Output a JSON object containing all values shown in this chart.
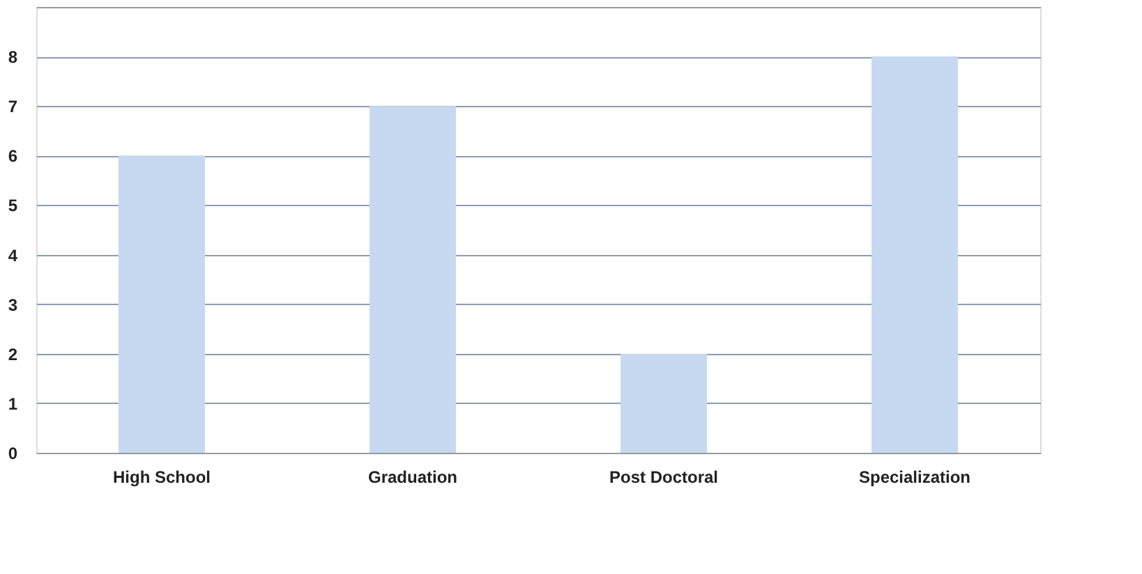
{
  "chart_data": {
    "type": "bar",
    "categories": [
      "High School",
      "Graduation",
      "Post Doctoral",
      "Specialization"
    ],
    "values": [
      6,
      7,
      2,
      8
    ],
    "color": "#c6d9f1",
    "ylim": [
      0,
      9
    ],
    "yticks": [
      0,
      1,
      2,
      3,
      4,
      5,
      6,
      7,
      8,
      {
        "value": 9,
        "label": null
      }
    ],
    "grid": "y"
  }
}
